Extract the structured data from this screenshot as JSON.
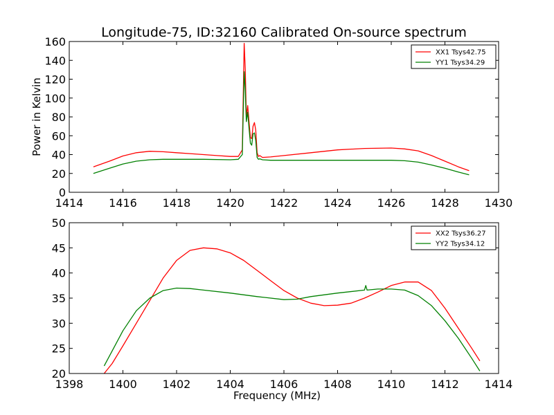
{
  "figure": {
    "title": "Longitude-75, ID:32160 Calibrated On-source spectrum"
  },
  "chart_data": [
    {
      "type": "line",
      "title": "Longitude-75, ID:32160 Calibrated On-source spectrum",
      "xlabel": "",
      "ylabel": "Power in Kelvin",
      "xlim": [
        1414,
        1430
      ],
      "ylim": [
        0,
        160
      ],
      "xticks": [
        1414,
        1416,
        1418,
        1420,
        1422,
        1424,
        1426,
        1428,
        1430
      ],
      "yticks": [
        0,
        20,
        40,
        60,
        80,
        100,
        120,
        140,
        160
      ],
      "grid": false,
      "legend_position": "top-right",
      "series": [
        {
          "name": "XX1 Tsys42.75",
          "color": "#ff0000",
          "x": [
            1414.9,
            1415.5,
            1416.0,
            1416.5,
            1417.0,
            1417.5,
            1418.0,
            1418.5,
            1419.0,
            1419.5,
            1420.0,
            1420.3,
            1420.45,
            1420.52,
            1420.56,
            1420.6,
            1420.65,
            1420.7,
            1420.75,
            1420.8,
            1420.85,
            1420.9,
            1420.95,
            1421.0,
            1421.05,
            1421.1,
            1421.2,
            1421.5,
            1422.0,
            1423.0,
            1424.0,
            1425.0,
            1426.0,
            1426.5,
            1427.0,
            1427.5,
            1428.0,
            1428.5,
            1428.9
          ],
          "y": [
            27,
            33,
            38.5,
            42,
            43.5,
            43,
            42,
            41,
            40,
            39,
            38,
            38,
            45,
            158,
            130,
            80,
            92,
            75,
            58,
            57,
            70,
            74,
            66,
            42,
            38,
            39,
            37,
            37.5,
            39,
            42,
            45,
            46.5,
            47,
            46,
            44,
            39,
            33,
            27,
            23
          ]
        },
        {
          "name": "YY1 Tsys34.29",
          "color": "#008000",
          "x": [
            1414.9,
            1415.5,
            1416.0,
            1416.5,
            1417.0,
            1417.5,
            1418.0,
            1419.0,
            1420.0,
            1420.3,
            1420.45,
            1420.52,
            1420.56,
            1420.6,
            1420.65,
            1420.7,
            1420.75,
            1420.8,
            1420.85,
            1420.9,
            1420.95,
            1421.0,
            1421.05,
            1421.1,
            1421.2,
            1421.5,
            1422.0,
            1424.0,
            1426.0,
            1426.5,
            1427.0,
            1427.5,
            1428.0,
            1428.5,
            1428.9
          ],
          "y": [
            20,
            25.5,
            30,
            33,
            34.5,
            35,
            35,
            35,
            34.5,
            35,
            40,
            128,
            108,
            75,
            85,
            68,
            52,
            50,
            62,
            63,
            55,
            37,
            35,
            35.5,
            34.5,
            34,
            34,
            34,
            34,
            33.5,
            32,
            29,
            25.5,
            21.5,
            18.5
          ]
        }
      ]
    },
    {
      "type": "line",
      "title": "",
      "xlabel": "Frequency (MHz)",
      "ylabel": "",
      "xlim": [
        1398,
        1414
      ],
      "ylim": [
        20,
        50
      ],
      "xticks": [
        1398,
        1400,
        1402,
        1404,
        1406,
        1408,
        1410,
        1412,
        1414
      ],
      "yticks": [
        20,
        25,
        30,
        35,
        40,
        45,
        50
      ],
      "grid": false,
      "legend_position": "top-right",
      "series": [
        {
          "name": "XX2 Tsys36.27",
          "color": "#ff0000",
          "x": [
            1399.3,
            1399.6,
            1400.0,
            1400.5,
            1401.0,
            1401.5,
            1402.0,
            1402.5,
            1403.0,
            1403.5,
            1404.0,
            1404.5,
            1405.0,
            1405.5,
            1406.0,
            1406.5,
            1407.0,
            1407.5,
            1408.0,
            1408.5,
            1409.0,
            1409.5,
            1410.0,
            1410.5,
            1411.0,
            1411.5,
            1412.0,
            1412.5,
            1413.0,
            1413.3
          ],
          "y": [
            20,
            22,
            25.5,
            30,
            34.5,
            39,
            42.5,
            44.5,
            45,
            44.8,
            44,
            42.5,
            40.5,
            38.5,
            36.5,
            35,
            34,
            33.5,
            33.6,
            34,
            35,
            36.2,
            37.5,
            38.2,
            38.2,
            36.5,
            33,
            29,
            25,
            22.5
          ]
        },
        {
          "name": "YY2 Tsys34.12",
          "color": "#008000",
          "x": [
            1399.3,
            1399.6,
            1400.0,
            1400.5,
            1401.0,
            1401.5,
            1402.0,
            1402.5,
            1403.0,
            1404.0,
            1405.0,
            1406.0,
            1406.5,
            1407.0,
            1408.0,
            1409.0,
            1409.05,
            1409.1,
            1409.5,
            1410.0,
            1410.5,
            1411.0,
            1411.5,
            1412.0,
            1412.5,
            1413.0,
            1413.3
          ],
          "y": [
            21.5,
            24.5,
            28.5,
            32.5,
            35,
            36.5,
            37,
            36.9,
            36.6,
            36,
            35.3,
            34.7,
            34.8,
            35.3,
            36,
            36.6,
            37.5,
            36.6,
            36.8,
            36.8,
            36.6,
            35.5,
            33.5,
            30.5,
            27,
            23,
            20.5
          ]
        }
      ]
    }
  ]
}
